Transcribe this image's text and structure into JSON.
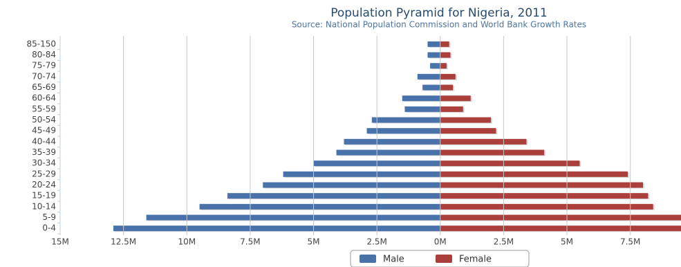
{
  "chart_data": {
    "type": "bar",
    "orientation": "horizontal",
    "stacked": "diverging",
    "title": "Population Pyramid for Nigeria, 2011",
    "subtitle": "Source: National Population Commission and World Bank Growth Rates",
    "categories": [
      "0-4",
      "5-9",
      "10-14",
      "15-19",
      "20-24",
      "25-29",
      "30-34",
      "35-39",
      "40-44",
      "45-49",
      "50-54",
      "55-59",
      "60-64",
      "65-69",
      "70-74",
      "75-79",
      "80-84",
      "85-150"
    ],
    "series": [
      {
        "name": "Male",
        "color": "#4a72aa",
        "values": [
          -12900000,
          -11600000,
          -9500000,
          -8400000,
          -7000000,
          -6200000,
          -5000000,
          -4100000,
          -3800000,
          -2900000,
          -2700000,
          -1400000,
          -1500000,
          -700000,
          -900000,
          -400000,
          -500000,
          -500000
        ]
      },
      {
        "name": "Female",
        "color": "#ab3f3c",
        "values": [
          9600000,
          9600000,
          8400000,
          8200000,
          8000000,
          7400000,
          5500000,
          4100000,
          3400000,
          2200000,
          2000000,
          900000,
          1200000,
          500000,
          600000,
          250000,
          400000,
          350000
        ]
      }
    ],
    "xlim": [
      -15000000,
      9500000
    ],
    "xticks": [
      {
        "value": -15000000,
        "label": "15M"
      },
      {
        "value": -12500000,
        "label": "12.5M"
      },
      {
        "value": -10000000,
        "label": "10M"
      },
      {
        "value": -7500000,
        "label": "7.5M"
      },
      {
        "value": -5000000,
        "label": "5M"
      },
      {
        "value": -2500000,
        "label": "2.5M"
      },
      {
        "value": 0,
        "label": "0M"
      },
      {
        "value": 2500000,
        "label": "2.5M"
      },
      {
        "value": 5000000,
        "label": "5M"
      },
      {
        "value": 7500000,
        "label": "7.5M"
      }
    ],
    "grid": true,
    "legend": "bottom"
  }
}
